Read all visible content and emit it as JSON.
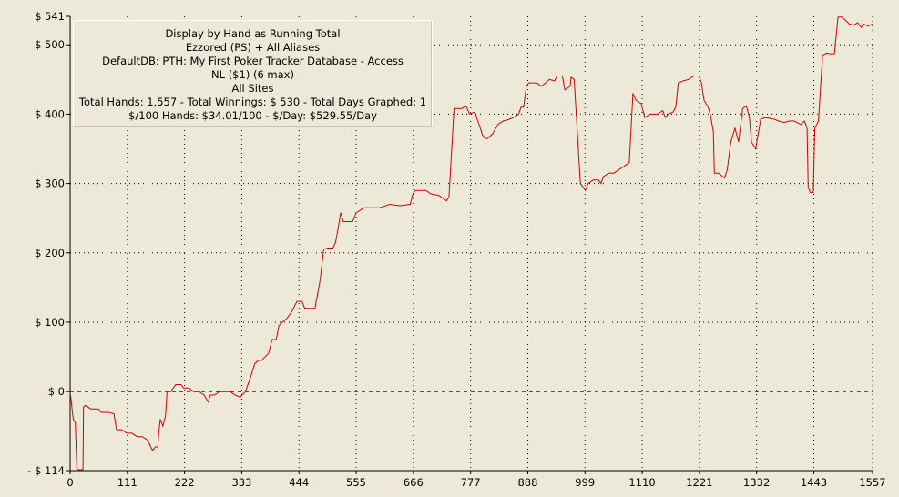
{
  "info": {
    "lines": [
      "Display by Hand as Running Total",
      "Ezzored (PS) + All Aliases",
      "DefaultDB: PTH: My First Poker Tracker Database - Access",
      "NL ($1) (6 max)",
      "All Sites",
      "Total Hands: 1,557 - Total Winnings: $ 530 - Total Days Graphed: 1",
      "$/100 Hands: $34.01/100 - $/Day: $529.55/Day"
    ]
  },
  "chart_data": {
    "type": "line",
    "title": "Display by Hand as Running Total",
    "xlabel": "",
    "ylabel": "",
    "xlim": [
      0,
      1557
    ],
    "ylim": [
      -114,
      541
    ],
    "grid": true,
    "line_color": "#d40000",
    "x_ticks": [
      0,
      111,
      222,
      333,
      444,
      555,
      666,
      777,
      888,
      999,
      1110,
      1221,
      1332,
      1443,
      1557
    ],
    "y_ticks": [
      {
        "value": 541,
        "label": "$ 541"
      },
      {
        "value": 500,
        "label": "$ 500"
      },
      {
        "value": 400,
        "label": "$ 400"
      },
      {
        "value": 300,
        "label": "$ 300"
      },
      {
        "value": 200,
        "label": "$ 200"
      },
      {
        "value": 100,
        "label": "$ 100"
      },
      {
        "value": 0,
        "label": "$ 0"
      },
      {
        "value": -114,
        "label": "- $ 114"
      }
    ],
    "grid_y": [
      500,
      400,
      300,
      200,
      100
    ],
    "zero_line": 0,
    "series": [
      {
        "name": "",
        "points": [
          [
            0,
            0
          ],
          [
            6,
            -40
          ],
          [
            10,
            -45
          ],
          [
            13,
            -112
          ],
          [
            20,
            -113
          ],
          [
            25,
            -112
          ],
          [
            26,
            -22
          ],
          [
            30,
            -20
          ],
          [
            40,
            -25
          ],
          [
            55,
            -25
          ],
          [
            60,
            -30
          ],
          [
            75,
            -30
          ],
          [
            85,
            -32
          ],
          [
            90,
            -55
          ],
          [
            100,
            -55
          ],
          [
            110,
            -60
          ],
          [
            120,
            -60
          ],
          [
            130,
            -65
          ],
          [
            140,
            -65
          ],
          [
            150,
            -70
          ],
          [
            160,
            -85
          ],
          [
            165,
            -80
          ],
          [
            170,
            -80
          ],
          [
            172,
            -60
          ],
          [
            175,
            -40
          ],
          [
            180,
            -50
          ],
          [
            185,
            -35
          ],
          [
            188,
            0
          ],
          [
            195,
            0
          ],
          [
            200,
            5
          ],
          [
            205,
            10
          ],
          [
            215,
            10
          ],
          [
            220,
            5
          ],
          [
            230,
            5
          ],
          [
            240,
            0
          ],
          [
            250,
            0
          ],
          [
            260,
            -5
          ],
          [
            268,
            -15
          ],
          [
            272,
            -5
          ],
          [
            280,
            -5
          ],
          [
            290,
            0
          ],
          [
            300,
            0
          ],
          [
            310,
            0
          ],
          [
            320,
            -5
          ],
          [
            330,
            -8
          ],
          [
            340,
            0
          ],
          [
            350,
            20
          ],
          [
            358,
            40
          ],
          [
            365,
            45
          ],
          [
            372,
            45
          ],
          [
            378,
            50
          ],
          [
            385,
            55
          ],
          [
            392,
            75
          ],
          [
            400,
            75
          ],
          [
            405,
            95
          ],
          [
            412,
            100
          ],
          [
            420,
            105
          ],
          [
            430,
            115
          ],
          [
            440,
            130
          ],
          [
            450,
            130
          ],
          [
            455,
            120
          ],
          [
            465,
            120
          ],
          [
            475,
            120
          ],
          [
            485,
            160
          ],
          [
            492,
            205
          ],
          [
            500,
            207
          ],
          [
            510,
            207
          ],
          [
            515,
            215
          ],
          [
            520,
            235
          ],
          [
            525,
            258
          ],
          [
            530,
            245
          ],
          [
            540,
            245
          ],
          [
            548,
            245
          ],
          [
            555,
            258
          ],
          [
            560,
            260
          ],
          [
            570,
            265
          ],
          [
            590,
            265
          ],
          [
            600,
            265
          ],
          [
            620,
            270
          ],
          [
            640,
            268
          ],
          [
            660,
            270
          ],
          [
            665,
            285
          ],
          [
            670,
            290
          ],
          [
            690,
            290
          ],
          [
            700,
            285
          ],
          [
            715,
            283
          ],
          [
            730,
            275
          ],
          [
            735,
            280
          ],
          [
            745,
            408
          ],
          [
            760,
            408
          ],
          [
            768,
            412
          ],
          [
            775,
            400
          ],
          [
            785,
            403
          ],
          [
            795,
            382
          ],
          [
            800,
            370
          ],
          [
            805,
            365
          ],
          [
            810,
            365
          ],
          [
            820,
            372
          ],
          [
            830,
            385
          ],
          [
            840,
            390
          ],
          [
            850,
            392
          ],
          [
            860,
            395
          ],
          [
            870,
            400
          ],
          [
            875,
            410
          ],
          [
            880,
            410
          ],
          [
            885,
            440
          ],
          [
            890,
            445
          ],
          [
            905,
            445
          ],
          [
            915,
            440
          ],
          [
            930,
            450
          ],
          [
            940,
            448
          ],
          [
            945,
            455
          ],
          [
            955,
            455
          ],
          [
            960,
            435
          ],
          [
            970,
            440
          ],
          [
            972,
            453
          ],
          [
            978,
            450
          ],
          [
            990,
            300
          ],
          [
            995,
            295
          ],
          [
            1000,
            290
          ],
          [
            1005,
            300
          ],
          [
            1015,
            305
          ],
          [
            1025,
            305
          ],
          [
            1030,
            300
          ],
          [
            1035,
            310
          ],
          [
            1045,
            315
          ],
          [
            1055,
            315
          ],
          [
            1065,
            320
          ],
          [
            1075,
            325
          ],
          [
            1085,
            330
          ],
          [
            1087,
            360
          ],
          [
            1092,
            430
          ],
          [
            1098,
            420
          ],
          [
            1108,
            415
          ],
          [
            1115,
            395
          ],
          [
            1125,
            400
          ],
          [
            1140,
            400
          ],
          [
            1150,
            405
          ],
          [
            1155,
            395
          ],
          [
            1160,
            400
          ],
          [
            1170,
            403
          ],
          [
            1175,
            410
          ],
          [
            1180,
            445
          ],
          [
            1190,
            448
          ],
          [
            1200,
            450
          ],
          [
            1210,
            455
          ],
          [
            1220,
            455
          ],
          [
            1225,
            445
          ],
          [
            1230,
            420
          ],
          [
            1238,
            410
          ],
          [
            1242,
            400
          ],
          [
            1248,
            375
          ],
          [
            1250,
            315
          ],
          [
            1258,
            315
          ],
          [
            1270,
            308
          ],
          [
            1275,
            320
          ],
          [
            1282,
            360
          ],
          [
            1290,
            380
          ],
          [
            1297,
            360
          ],
          [
            1305,
            408
          ],
          [
            1312,
            412
          ],
          [
            1318,
            395
          ],
          [
            1322,
            360
          ],
          [
            1330,
            350
          ],
          [
            1340,
            393
          ],
          [
            1350,
            395
          ],
          [
            1365,
            393
          ],
          [
            1375,
            390
          ],
          [
            1385,
            388
          ],
          [
            1395,
            390
          ],
          [
            1405,
            390
          ],
          [
            1418,
            385
          ],
          [
            1425,
            390
          ],
          [
            1430,
            380
          ],
          [
            1432,
            295
          ],
          [
            1436,
            287
          ],
          [
            1442,
            287
          ],
          [
            1445,
            380
          ],
          [
            1452,
            390
          ],
          [
            1460,
            485
          ],
          [
            1468,
            488
          ],
          [
            1475,
            487
          ],
          [
            1483,
            487
          ],
          [
            1490,
            540
          ],
          [
            1497,
            540
          ],
          [
            1505,
            535
          ],
          [
            1512,
            530
          ],
          [
            1520,
            528
          ],
          [
            1528,
            532
          ],
          [
            1535,
            525
          ],
          [
            1540,
            530
          ],
          [
            1548,
            527
          ],
          [
            1557,
            530
          ]
        ]
      }
    ]
  }
}
